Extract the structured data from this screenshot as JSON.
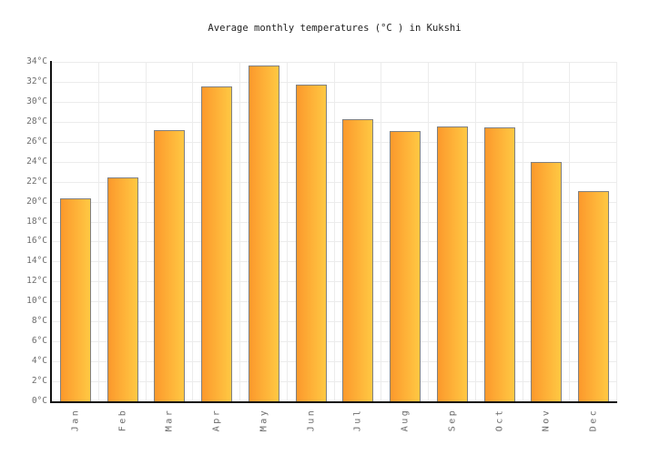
{
  "chart_data": {
    "type": "bar",
    "title": "Average monthly temperatures (°C ) in Kukshi",
    "categories": [
      "Jan",
      "Feb",
      "Mar",
      "Apr",
      "May",
      "Jun",
      "Jul",
      "Aug",
      "Sep",
      "Oct",
      "Nov",
      "Dec"
    ],
    "values": [
      20.3,
      22.4,
      27.2,
      31.5,
      33.6,
      31.7,
      28.3,
      27.1,
      27.5,
      27.4,
      24,
      21.1
    ],
    "xlabel": "",
    "ylabel": "",
    "ylim": [
      0,
      34
    ],
    "ytick_step": 2,
    "ytick_labels": [
      "0°C",
      "2°C",
      "4°C",
      "6°C",
      "8°C",
      "10°C",
      "12°C",
      "14°C",
      "16°C",
      "18°C",
      "20°C",
      "22°C",
      "24°C",
      "26°C",
      "28°C",
      "30°C",
      "32°C",
      "34°C"
    ],
    "grid": "on",
    "legend": "none",
    "colors": {
      "bar_gradient_left": "#FC992C",
      "bar_gradient_right": "#FFC843",
      "bar_border": "#808080",
      "gridline": "#ECECEC",
      "axis": "#111111",
      "tick_text": "#6B6B6B",
      "title_text": "#222222",
      "background": "#FFFFFF"
    }
  }
}
